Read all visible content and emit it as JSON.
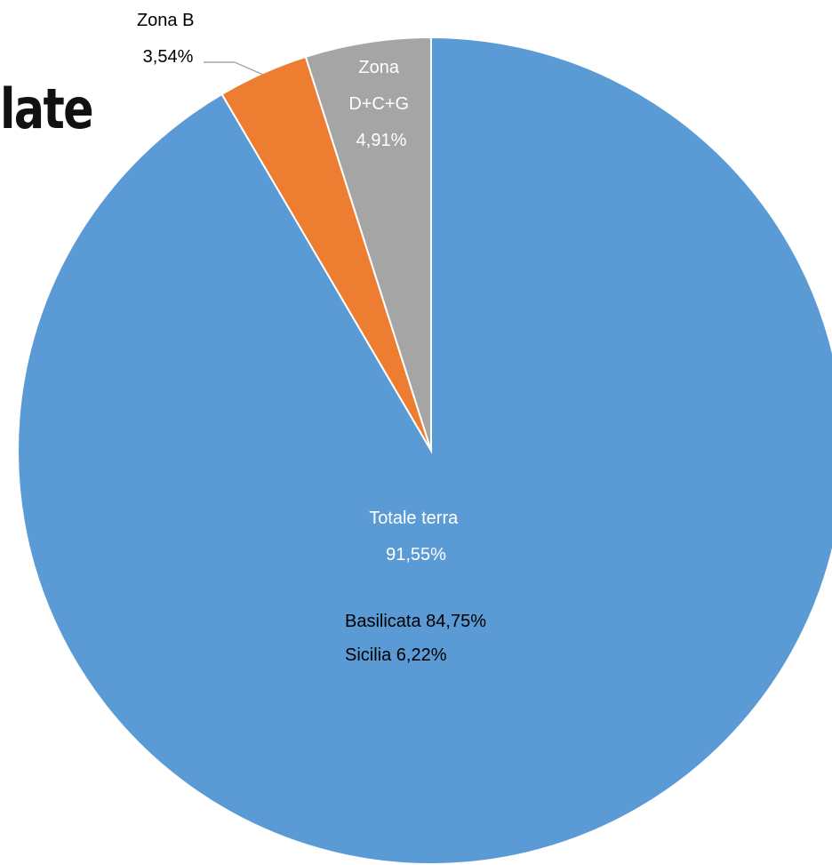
{
  "heading_fragment": "late",
  "colors": {
    "blue": "#5b9bd5",
    "orange": "#ed7d31",
    "gray": "#a5a5a5",
    "label_light": "#ffffff",
    "label_dark": "#000000",
    "leader": "#a5a5a5"
  },
  "chart_data": {
    "type": "pie",
    "start_angle_deg": 0,
    "direction": "counterclockwise",
    "slices": [
      {
        "name": "Zona D+C+G",
        "value": 4.91,
        "label_lines": [
          "Zona",
          "D+C+G",
          "4,91%"
        ],
        "color": "#a5a5a5"
      },
      {
        "name": "Zona B",
        "value": 3.54,
        "label_lines": [
          "Zona B",
          "3,54%"
        ],
        "color": "#ed7d31"
      },
      {
        "name": "Totale terra",
        "value": 91.55,
        "label_lines": [
          "Totale terra",
          "91,55%"
        ],
        "color": "#5b9bd5"
      }
    ],
    "annotations": [
      "Basilicata 84,75%",
      "Sicilia 6,22%"
    ]
  }
}
